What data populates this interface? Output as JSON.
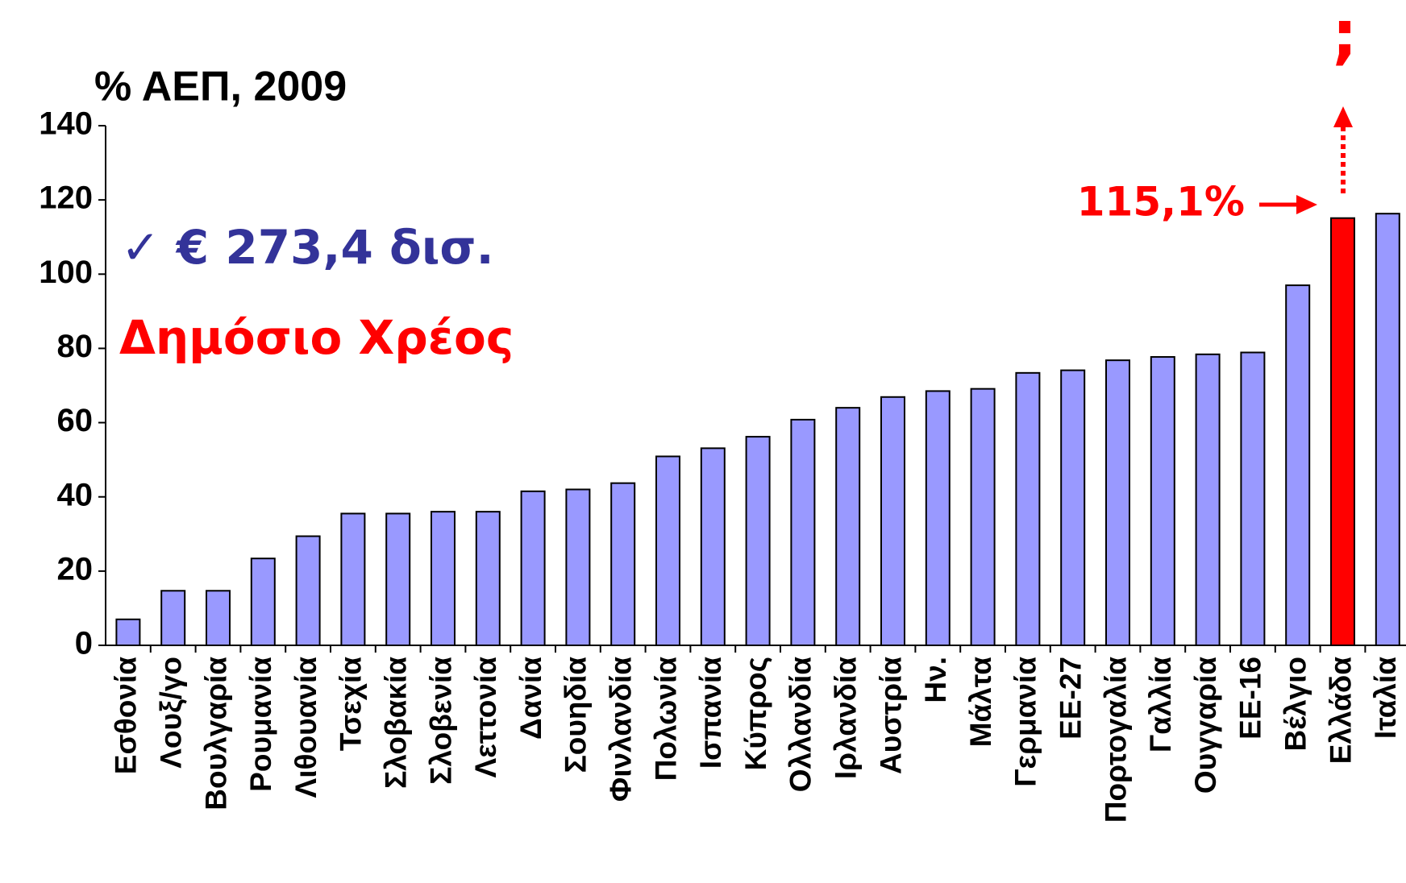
{
  "chart_data": {
    "type": "bar",
    "title": "% ΑΕΠ, 2009",
    "categories": [
      "Εσθονία",
      "Λουξ/γο",
      "Βουλγαρία",
      "Ρουμανία",
      "Λιθουανία",
      "Τσεχία",
      "Σλοβακία",
      "Σλοβενία",
      "Λεττονία",
      "Δανία",
      "Σουηδία",
      "Φινλανδία",
      "Πολωνία",
      "Ισπανία",
      "Κύπρος",
      "Ολλανδία",
      "Ιρλανδία",
      "Αυστρία",
      "Ην.",
      "Μάλτα",
      "Γερμανία",
      "ΕΕ-27",
      "Πορτογαλία",
      "Γαλλία",
      "Ουγγαρία",
      "ΕΕ-16",
      "Βέλγιο",
      "Ελλάδα",
      "Ιταλία"
    ],
    "values": [
      7.0,
      14.7,
      14.7,
      23.4,
      29.4,
      35.5,
      35.5,
      36.0,
      36.0,
      41.5,
      42.0,
      43.7,
      50.9,
      53.1,
      56.2,
      60.8,
      64.0,
      66.9,
      68.5,
      69.1,
      73.4,
      74.1,
      76.8,
      77.7,
      78.4,
      78.9,
      97.0,
      115.1,
      116.3
    ],
    "colors": [
      "#9999ff",
      "#9999ff",
      "#9999ff",
      "#9999ff",
      "#9999ff",
      "#9999ff",
      "#9999ff",
      "#9999ff",
      "#9999ff",
      "#9999ff",
      "#9999ff",
      "#9999ff",
      "#9999ff",
      "#9999ff",
      "#9999ff",
      "#9999ff",
      "#9999ff",
      "#9999ff",
      "#9999ff",
      "#9999ff",
      "#9999ff",
      "#9999ff",
      "#9999ff",
      "#9999ff",
      "#9999ff",
      "#9999ff",
      "#9999ff",
      "#ff0000",
      "#9999ff"
    ],
    "ylim": [
      0,
      140
    ],
    "yticks": [
      0,
      20,
      40,
      60,
      80,
      100,
      120,
      140
    ],
    "grid": false,
    "annotations": [
      "✓ € 273,4 δισ.",
      "Δημόσιο Χρέος",
      "115,1%",
      ";"
    ]
  }
}
